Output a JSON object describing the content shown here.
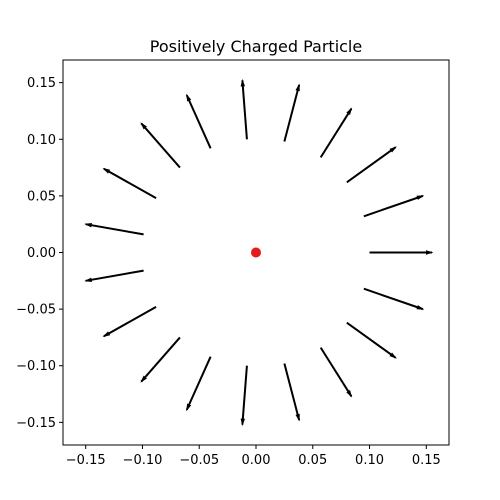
{
  "chart_data": {
    "type": "quiver",
    "title": "Positively Charged Particle",
    "xlabel": "",
    "ylabel": "",
    "xlim": [
      -0.17,
      0.17
    ],
    "ylim": [
      -0.17,
      0.17
    ],
    "xticks": [
      -0.15,
      -0.1,
      -0.05,
      0.0,
      0.05,
      0.1,
      0.15
    ],
    "yticks": [
      -0.15,
      -0.1,
      -0.05,
      0.0,
      0.05,
      0.1,
      0.15
    ],
    "xtick_labels": [
      "−0.15",
      "−0.10",
      "−0.05",
      "0.00",
      "0.05",
      "0.10",
      "0.15"
    ],
    "ytick_labels": [
      "−0.15",
      "−0.10",
      "−0.05",
      "0.00",
      "0.05",
      "0.10",
      "0.15"
    ],
    "grid": false,
    "charge": {
      "x": 0.0,
      "y": 0.0,
      "sign": "positive",
      "color": "#e41a1c"
    },
    "arrow_color": "#000000",
    "arrows": [
      {
        "x": 0.1,
        "y": 0.0,
        "u": 0.055,
        "v": 0.0
      },
      {
        "x": 0.095,
        "y": 0.032,
        "u": 0.052,
        "v": 0.018
      },
      {
        "x": 0.08,
        "y": 0.062,
        "u": 0.043,
        "v": 0.031
      },
      {
        "x": 0.057,
        "y": 0.084,
        "u": 0.027,
        "v": 0.043
      },
      {
        "x": 0.025,
        "y": 0.098,
        "u": 0.013,
        "v": 0.05
      },
      {
        "x": -0.008,
        "y": 0.1,
        "u": -0.004,
        "v": 0.052
      },
      {
        "x": -0.04,
        "y": 0.092,
        "u": -0.021,
        "v": 0.047
      },
      {
        "x": -0.067,
        "y": 0.075,
        "u": -0.034,
        "v": 0.039
      },
      {
        "x": -0.088,
        "y": 0.048,
        "u": -0.046,
        "v": 0.026
      },
      {
        "x": -0.099,
        "y": 0.016,
        "u": -0.051,
        "v": 0.009
      },
      {
        "x": -0.099,
        "y": -0.016,
        "u": -0.051,
        "v": -0.009
      },
      {
        "x": -0.088,
        "y": -0.048,
        "u": -0.046,
        "v": -0.026
      },
      {
        "x": -0.067,
        "y": -0.075,
        "u": -0.034,
        "v": -0.039
      },
      {
        "x": -0.04,
        "y": -0.092,
        "u": -0.021,
        "v": -0.047
      },
      {
        "x": -0.008,
        "y": -0.1,
        "u": -0.004,
        "v": -0.052
      },
      {
        "x": 0.025,
        "y": -0.098,
        "u": 0.013,
        "v": -0.05
      },
      {
        "x": 0.057,
        "y": -0.084,
        "u": 0.027,
        "v": -0.043
      },
      {
        "x": 0.08,
        "y": -0.062,
        "u": 0.043,
        "v": -0.031
      },
      {
        "x": 0.095,
        "y": -0.032,
        "u": 0.052,
        "v": -0.018
      }
    ]
  }
}
